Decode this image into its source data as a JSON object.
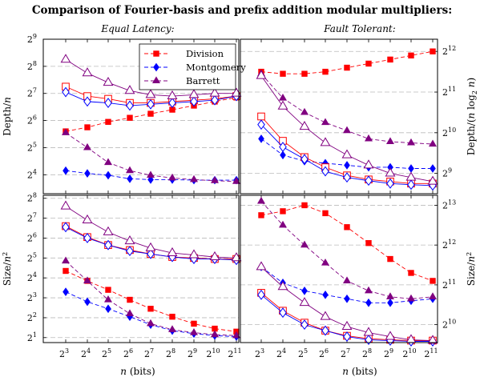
{
  "title": "Comparison of Fourier-basis and prefix addition modular multipliers:",
  "subtitles": {
    "left": "Equal Latency:",
    "right": "Fault Tolerant:"
  },
  "xlabel": "n (bits)",
  "colors": {
    "Division": "#ff0000",
    "Montgomery": "#0000ff",
    "Barrett": "#800080"
  },
  "legend": {
    "position": "top-right of top-left panel",
    "entries": [
      {
        "name": "Division",
        "marker": "square",
        "color": "#ff0000"
      },
      {
        "name": "Montgomery",
        "marker": "diamond",
        "color": "#0000ff"
      },
      {
        "name": "Barrett",
        "marker": "triangle",
        "color": "#800080"
      }
    ]
  },
  "style_note": "Dashed lines with filled markers: prefix addition; solid lines with hollow markers: Fourier-basis",
  "chart_data": [
    {
      "type": "line",
      "panel": "top-left",
      "subtitle": "Equal Latency:",
      "ylabel": "Depth/n",
      "x_exponents": [
        3,
        4,
        5,
        6,
        7,
        8,
        9,
        10,
        11
      ],
      "x_tick_labels": [
        "2^3",
        "2^4",
        "2^5",
        "2^6",
        "2^7",
        "2^8",
        "2^9",
        "2^10",
        "2^11"
      ],
      "y_log2_range": [
        3.3,
        9
      ],
      "y_ticks": [
        4,
        5,
        6,
        7,
        8,
        9
      ],
      "series": [
        {
          "name": "Division",
          "style": "dashed",
          "marker": "square",
          "filled": true,
          "log2_values": [
            5.6,
            5.75,
            5.95,
            6.1,
            6.25,
            6.4,
            6.55,
            6.7,
            6.85
          ]
        },
        {
          "name": "Montgomery",
          "style": "dashed",
          "marker": "diamond",
          "filled": true,
          "log2_values": [
            4.15,
            4.05,
            3.98,
            3.85,
            3.82,
            3.82,
            3.8,
            3.8,
            3.8
          ]
        },
        {
          "name": "Barrett",
          "style": "dashed",
          "marker": "triangle",
          "filled": true,
          "log2_values": [
            5.55,
            5.0,
            4.45,
            4.15,
            3.98,
            3.88,
            3.82,
            3.78,
            3.75
          ]
        },
        {
          "style": "solid",
          "marker": "square",
          "filled": false,
          "color_of": "Division",
          "log2_values": [
            7.25,
            6.9,
            6.8,
            6.65,
            6.65,
            6.7,
            6.75,
            6.8,
            6.9
          ]
        },
        {
          "style": "solid",
          "marker": "diamond",
          "filled": false,
          "color_of": "Montgomery",
          "log2_values": [
            7.05,
            6.7,
            6.65,
            6.55,
            6.6,
            6.65,
            6.7,
            6.75,
            6.9
          ]
        },
        {
          "style": "solid",
          "marker": "triangle",
          "filled": false,
          "color_of": "Barrett",
          "log2_values": [
            8.25,
            7.75,
            7.4,
            7.1,
            6.95,
            6.9,
            6.95,
            7.0,
            7.0
          ]
        }
      ]
    },
    {
      "type": "line",
      "panel": "top-right",
      "subtitle": "Fault Tolerant:",
      "ylabel": "Depth/(n log2 n)",
      "y_axis_side": "right",
      "x_exponents": [
        3,
        4,
        5,
        6,
        7,
        8,
        9,
        10,
        11
      ],
      "x_tick_labels": [
        "2^3",
        "2^4",
        "2^5",
        "2^6",
        "2^7",
        "2^8",
        "2^9",
        "2^10",
        "2^11"
      ],
      "y_log2_range": [
        8.5,
        12.3
      ],
      "y_ticks": [
        9,
        10,
        11,
        12
      ],
      "series": [
        {
          "name": "Division",
          "style": "dashed",
          "marker": "square",
          "filled": true,
          "log2_values": [
            11.5,
            11.45,
            11.45,
            11.5,
            11.6,
            11.7,
            11.8,
            11.9,
            12.0
          ]
        },
        {
          "name": "Montgomery",
          "style": "dashed",
          "marker": "diamond",
          "filled": true,
          "log2_values": [
            9.85,
            9.45,
            9.3,
            9.25,
            9.2,
            9.15,
            9.15,
            9.12,
            9.12
          ]
        },
        {
          "name": "Barrett",
          "style": "dashed",
          "marker": "triangle",
          "filled": true,
          "log2_values": [
            11.45,
            10.85,
            10.5,
            10.25,
            10.05,
            9.85,
            9.78,
            9.75,
            9.72
          ]
        },
        {
          "style": "solid",
          "marker": "square",
          "filled": false,
          "color_of": "Division",
          "log2_values": [
            10.4,
            9.8,
            9.4,
            9.15,
            8.95,
            8.85,
            8.8,
            8.75,
            8.75
          ]
        },
        {
          "style": "solid",
          "marker": "diamond",
          "filled": false,
          "color_of": "Montgomery",
          "log2_values": [
            10.2,
            9.65,
            9.35,
            9.05,
            8.9,
            8.82,
            8.75,
            8.72,
            8.7
          ]
        },
        {
          "style": "solid",
          "marker": "triangle",
          "filled": false,
          "color_of": "Barrett",
          "log2_values": [
            11.4,
            10.65,
            10.15,
            9.75,
            9.45,
            9.2,
            9.0,
            8.9,
            8.8
          ]
        }
      ]
    },
    {
      "type": "line",
      "panel": "bottom-left",
      "ylabel": "Size/n^2",
      "x_exponents": [
        3,
        4,
        5,
        6,
        7,
        8,
        9,
        10,
        11
      ],
      "x_tick_labels": [
        "2^3",
        "2^4",
        "2^5",
        "2^6",
        "2^7",
        "2^8",
        "2^9",
        "2^10",
        "2^11"
      ],
      "y_log2_range": [
        0.75,
        8.15
      ],
      "y_ticks": [
        1,
        2,
        3,
        4,
        5,
        6,
        7,
        8
      ],
      "series": [
        {
          "name": "Division",
          "style": "dashed",
          "marker": "square",
          "filled": true,
          "log2_values": [
            4.35,
            3.85,
            3.4,
            2.9,
            2.45,
            2.05,
            1.7,
            1.45,
            1.3
          ]
        },
        {
          "name": "Montgomery",
          "style": "dashed",
          "marker": "diamond",
          "filled": true,
          "log2_values": [
            3.3,
            2.8,
            2.45,
            2.05,
            1.65,
            1.35,
            1.2,
            1.1,
            1.05
          ]
        },
        {
          "name": "Barrett",
          "style": "dashed",
          "marker": "triangle",
          "filled": true,
          "log2_values": [
            4.85,
            3.85,
            2.9,
            2.2,
            1.7,
            1.4,
            1.25,
            1.15,
            1.1
          ]
        },
        {
          "style": "solid",
          "marker": "square",
          "filled": false,
          "color_of": "Division",
          "log2_values": [
            6.6,
            6.05,
            5.65,
            5.4,
            5.2,
            5.05,
            5.0,
            4.95,
            4.95
          ]
        },
        {
          "style": "solid",
          "marker": "diamond",
          "filled": false,
          "color_of": "Montgomery",
          "log2_values": [
            6.55,
            6.0,
            5.65,
            5.35,
            5.2,
            5.05,
            4.95,
            4.95,
            4.9
          ]
        },
        {
          "style": "solid",
          "marker": "triangle",
          "filled": false,
          "color_of": "Barrett",
          "log2_values": [
            7.6,
            6.9,
            6.3,
            5.85,
            5.5,
            5.25,
            5.15,
            5.05,
            5.0
          ]
        }
      ]
    },
    {
      "type": "line",
      "panel": "bottom-right",
      "ylabel": "Size/n^2",
      "y_axis_side": "right",
      "x_exponents": [
        3,
        4,
        5,
        6,
        7,
        8,
        9,
        10,
        11
      ],
      "x_tick_labels": [
        "2^3",
        "2^4",
        "2^5",
        "2^6",
        "2^7",
        "2^8",
        "2^9",
        "2^10",
        "2^11"
      ],
      "y_log2_range": [
        9.55,
        13.25
      ],
      "y_ticks": [
        10,
        11,
        12,
        13
      ],
      "series": [
        {
          "name": "Division",
          "style": "dashed",
          "marker": "square",
          "filled": true,
          "log2_values": [
            12.75,
            12.85,
            13.0,
            12.8,
            12.45,
            12.05,
            11.65,
            11.3,
            11.1
          ]
        },
        {
          "name": "Montgomery",
          "style": "dashed",
          "marker": "diamond",
          "filled": true,
          "log2_values": [
            11.45,
            11.05,
            10.85,
            10.75,
            10.65,
            10.55,
            10.55,
            10.6,
            10.65
          ]
        },
        {
          "name": "Barrett",
          "style": "dashed",
          "marker": "triangle",
          "filled": true,
          "log2_values": [
            13.1,
            12.5,
            12.0,
            11.55,
            11.1,
            10.85,
            10.7,
            10.65,
            10.7
          ]
        },
        {
          "style": "solid",
          "marker": "square",
          "filled": false,
          "color_of": "Division",
          "log2_values": [
            10.8,
            10.35,
            10.05,
            9.85,
            9.72,
            9.65,
            9.62,
            9.6,
            9.6
          ]
        },
        {
          "style": "solid",
          "marker": "diamond",
          "filled": false,
          "color_of": "Montgomery",
          "log2_values": [
            10.75,
            10.3,
            10.0,
            9.85,
            9.7,
            9.62,
            9.6,
            9.58,
            9.58
          ]
        },
        {
          "style": "solid",
          "marker": "triangle",
          "filled": false,
          "color_of": "Barrett",
          "log2_values": [
            11.45,
            10.95,
            10.55,
            10.2,
            9.95,
            9.8,
            9.7,
            9.62,
            9.6
          ]
        }
      ]
    }
  ]
}
